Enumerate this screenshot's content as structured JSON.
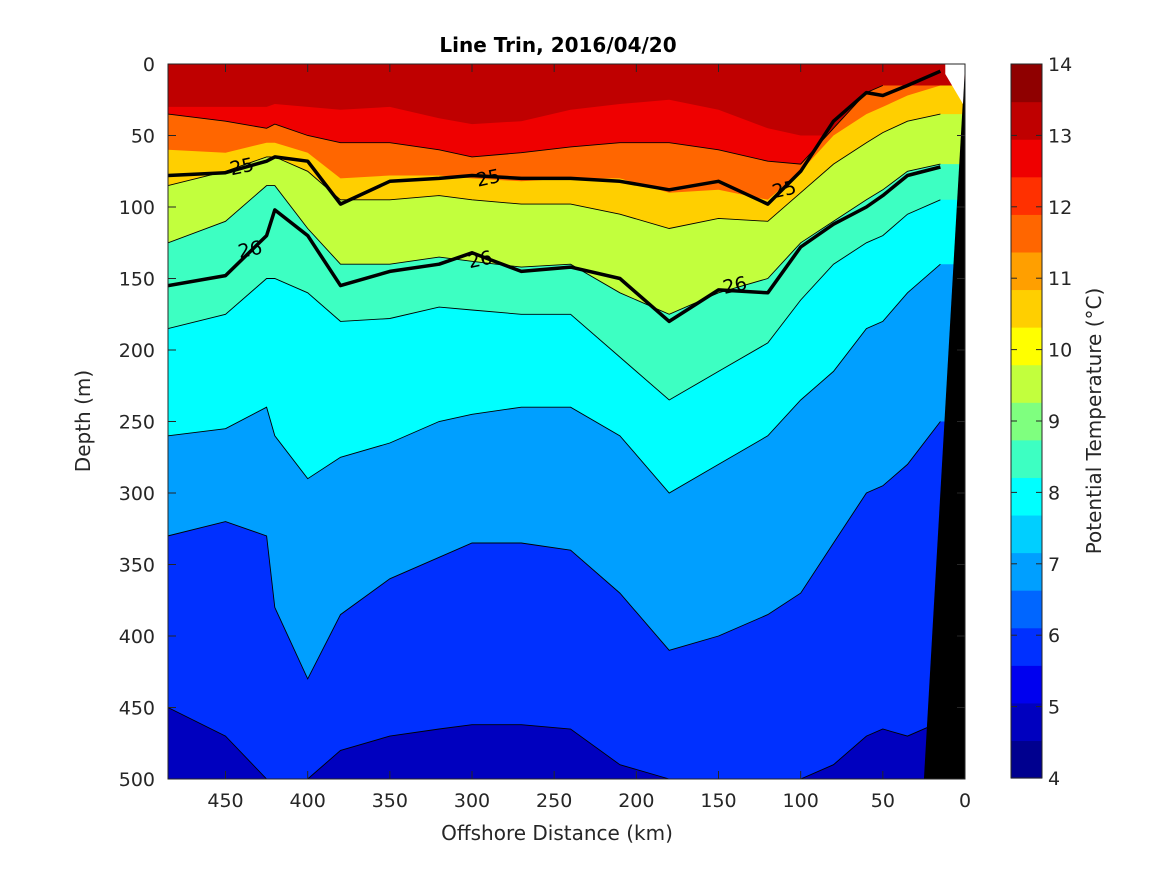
{
  "chart_data": {
    "type": "heatmap",
    "title": "Line Trin, 2016/04/20",
    "xlabel": "Offshore Distance (km)",
    "ylabel": "Depth (m)",
    "colorbar_label": "Potential Temperature (°C)",
    "x_reversed": true,
    "y_reversed": true,
    "xlim": [
      0,
      485
    ],
    "ylim": [
      0,
      500
    ],
    "xticks": [
      "450",
      "400",
      "350",
      "300",
      "250",
      "200",
      "150",
      "100",
      "50",
      "0"
    ],
    "yticks": [
      "0",
      "50",
      "100",
      "150",
      "200",
      "250",
      "300",
      "350",
      "400",
      "450",
      "500"
    ],
    "colorbar_ticks": [
      "4",
      "5",
      "6",
      "7",
      "8",
      "9",
      "10",
      "11",
      "12",
      "13",
      "14"
    ],
    "colorbar_range": [
      4,
      14
    ],
    "colormap": [
      "#00008f",
      "#0000bf",
      "#0000ef",
      "#0030ff",
      "#0066ff",
      "#009fff",
      "#00cfff",
      "#00ffff",
      "#3dffc2",
      "#7fff7f",
      "#c2ff3d",
      "#ffff00",
      "#ffcf00",
      "#ff9f00",
      "#ff6600",
      "#ff3000",
      "#ef0000",
      "#bf0000",
      "#8f0000"
    ],
    "x": [
      485,
      450,
      425,
      420,
      400,
      380,
      350,
      320,
      300,
      270,
      240,
      210,
      180,
      150,
      120,
      100,
      80,
      60,
      50,
      35,
      15
    ],
    "isotherm_depths_m": {
      "13": [
        null,
        null,
        30,
        28,
        30,
        32,
        30,
        38,
        42,
        40,
        32,
        28,
        25,
        32,
        45,
        50,
        null,
        null,
        null,
        null,
        null
      ],
      "12": [
        35,
        40,
        45,
        42,
        50,
        55,
        55,
        60,
        65,
        62,
        58,
        55,
        55,
        60,
        68,
        70,
        45,
        20,
        15,
        null,
        null
      ],
      "11": [
        60,
        62,
        55,
        55,
        62,
        80,
        78,
        78,
        80,
        82,
        80,
        80,
        90,
        88,
        95,
        75,
        50,
        35,
        30,
        22,
        15
      ],
      "10": [
        85,
        75,
        65,
        65,
        75,
        95,
        95,
        92,
        95,
        98,
        98,
        105,
        115,
        108,
        110,
        90,
        70,
        55,
        48,
        40,
        35
      ],
      "9": [
        125,
        110,
        85,
        85,
        115,
        140,
        140,
        135,
        138,
        142,
        140,
        160,
        175,
        160,
        150,
        125,
        110,
        95,
        88,
        75,
        70
      ],
      "8": [
        185,
        175,
        150,
        150,
        160,
        180,
        178,
        170,
        172,
        175,
        175,
        205,
        235,
        215,
        195,
        165,
        140,
        125,
        120,
        105,
        95
      ],
      "7": [
        260,
        255,
        240,
        260,
        290,
        275,
        265,
        250,
        245,
        240,
        240,
        260,
        300,
        280,
        260,
        235,
        215,
        185,
        180,
        160,
        140
      ],
      "6": [
        330,
        320,
        330,
        380,
        430,
        385,
        360,
        345,
        335,
        335,
        340,
        370,
        410,
        400,
        385,
        370,
        335,
        300,
        295,
        280,
        250
      ],
      "5": [
        450,
        470,
        500,
        500,
        500,
        480,
        470,
        465,
        462,
        462,
        465,
        490,
        500,
        500,
        500,
        500,
        490,
        470,
        465,
        470,
        460
      ]
    },
    "density_contours": [
      {
        "label": "25",
        "depths_m": [
          78,
          76,
          68,
          65,
          68,
          98,
          82,
          80,
          78,
          80,
          80,
          82,
          88,
          82,
          98,
          75,
          40,
          20,
          22,
          15,
          5
        ]
      },
      {
        "label": "26",
        "depths_m": [
          155,
          148,
          120,
          102,
          120,
          155,
          145,
          140,
          132,
          145,
          142,
          150,
          180,
          158,
          160,
          128,
          112,
          100,
          92,
          78,
          72
        ]
      }
    ],
    "contour_labels": [
      {
        "text": "25",
        "x": 440,
        "y": 72
      },
      {
        "text": "25",
        "x": 290,
        "y": 80
      },
      {
        "text": "25",
        "x": 110,
        "y": 88
      },
      {
        "text": "26",
        "x": 435,
        "y": 130
      },
      {
        "text": "26",
        "x": 295,
        "y": 137
      },
      {
        "text": "26",
        "x": 140,
        "y": 155
      }
    ],
    "bathymetry_mask": {
      "color": "#000000",
      "x_at_surface": 0,
      "x_at_bottom": 25
    },
    "grid": false,
    "legend": "colorbar-right"
  }
}
